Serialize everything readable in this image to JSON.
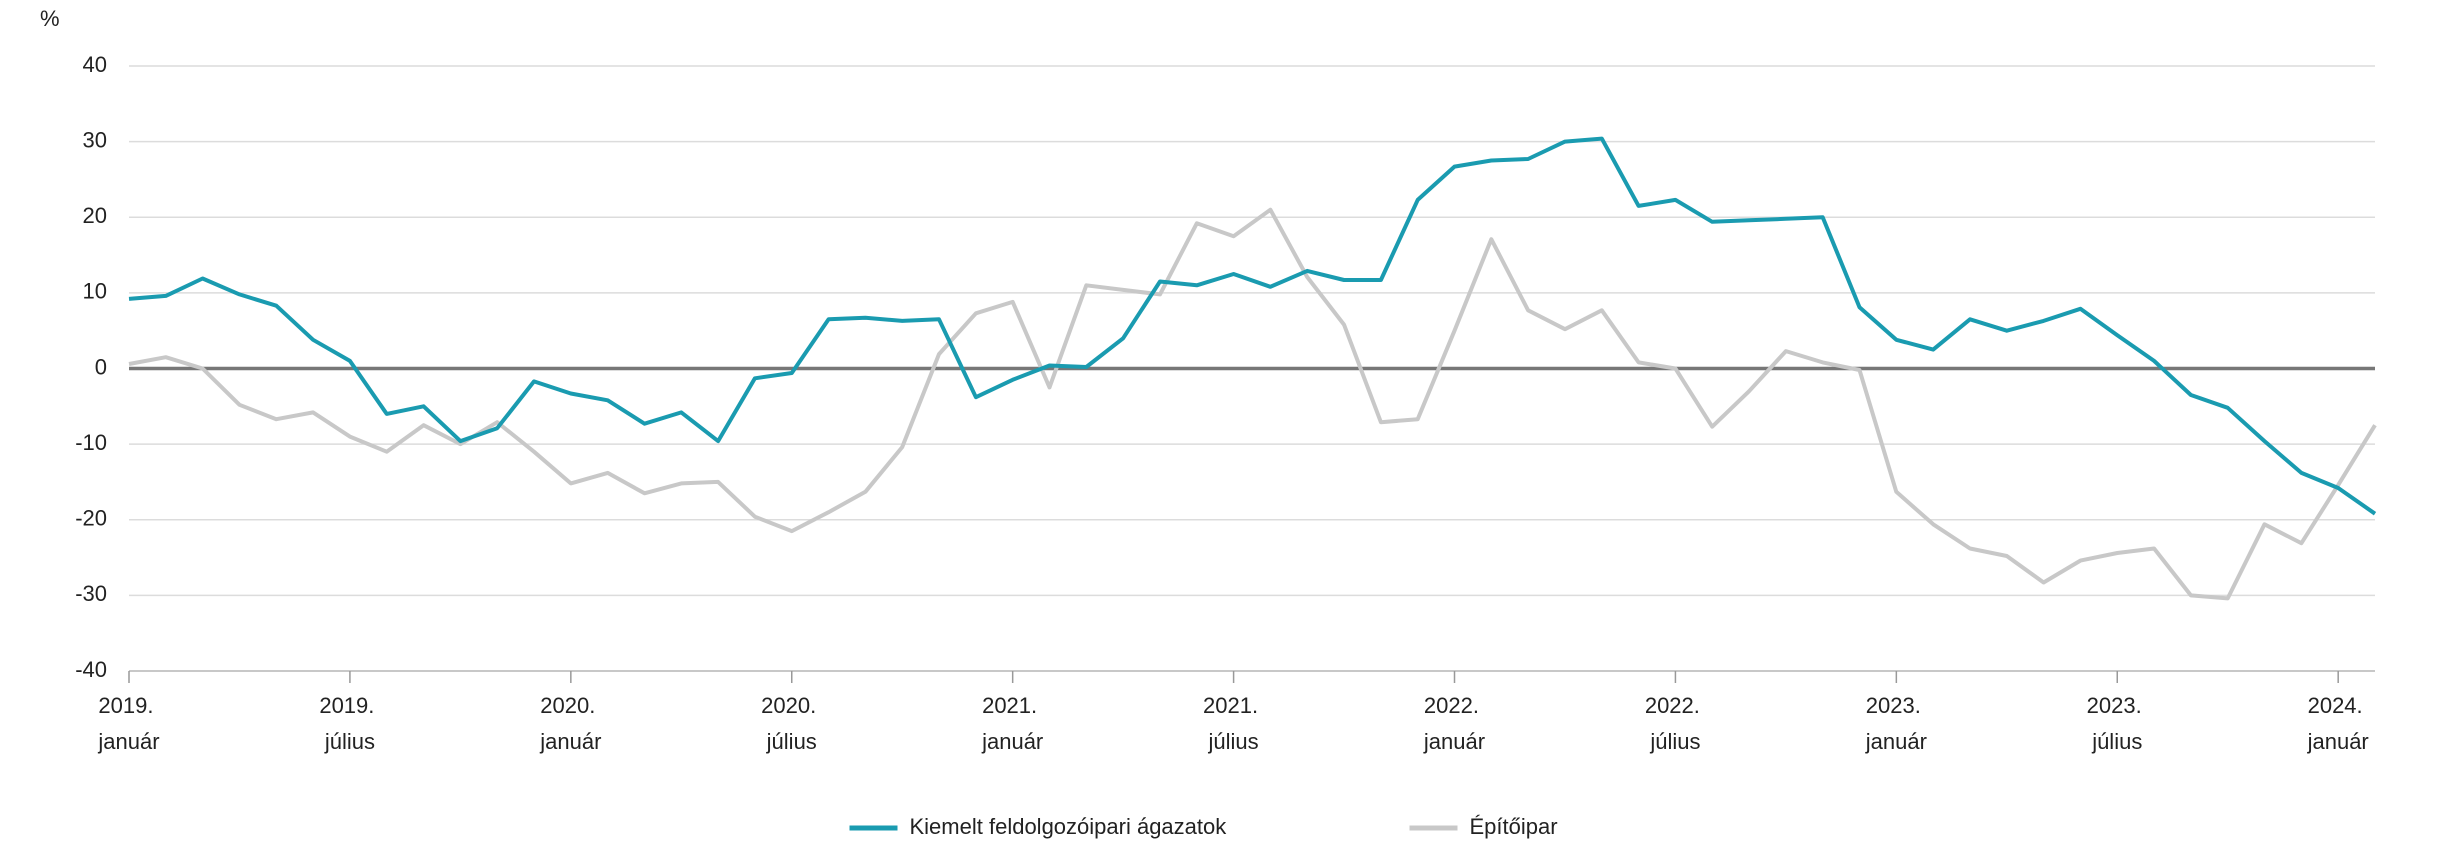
{
  "chart_data": {
    "type": "line",
    "y_label": "%",
    "categories": [
      "2019. január",
      null,
      null,
      null,
      null,
      null,
      "2019. július",
      null,
      null,
      null,
      null,
      null,
      "2020. január",
      null,
      null,
      null,
      null,
      null,
      "2020. július",
      null,
      null,
      null,
      null,
      null,
      "2021. január",
      null,
      null,
      null,
      null,
      null,
      "2021. július",
      null,
      null,
      null,
      null,
      null,
      "2022. január",
      null,
      null,
      null,
      null,
      null,
      "2022. július",
      null,
      null,
      null,
      null,
      null,
      "2023. január",
      null,
      null,
      null,
      null,
      null,
      "2023. július",
      null,
      null,
      null,
      null,
      null,
      "2024. január",
      null
    ],
    "series": [
      {
        "name": "Kiemelt feldolgozóipari ágazatok",
        "color": "#1a9bb0",
        "values": [
          9.2,
          9.6,
          11.9,
          9.8,
          8.3,
          3.8,
          1.0,
          -6.0,
          -5.0,
          -9.6,
          -7.9,
          -1.7,
          -3.3,
          -4.2,
          -7.3,
          -5.8,
          -9.6,
          -1.3,
          -0.6,
          6.5,
          6.7,
          6.3,
          6.5,
          -3.8,
          -1.5,
          0.4,
          0.2,
          4.0,
          11.5,
          11.0,
          12.5,
          10.8,
          12.9,
          11.7,
          11.7,
          22.3,
          26.7,
          27.5,
          27.7,
          30.0,
          30.4,
          21.5,
          22.3,
          19.4,
          19.6,
          19.8,
          20.0,
          8.1,
          3.8,
          2.5,
          6.5,
          5.0,
          6.3,
          7.9,
          4.4,
          1.0,
          -3.5,
          -5.2,
          -9.6,
          -13.8,
          -15.8,
          -19.2
        ]
      },
      {
        "name": "Építőipar",
        "color": "#c8c8c8",
        "values": [
          0.6,
          1.5,
          0,
          -4.8,
          -6.7,
          -5.8,
          -9.0,
          -11.0,
          -7.5,
          -10.0,
          -7.1,
          -11.0,
          -15.2,
          -13.8,
          -16.5,
          -15.2,
          -15.0,
          -19.6,
          -21.5,
          -19.0,
          -16.3,
          -10.4,
          1.9,
          7.3,
          8.8,
          -2.5,
          11.0,
          10.4,
          9.8,
          19.2,
          17.5,
          21.0,
          12.1,
          5.8,
          -7.1,
          -6.7,
          5.0,
          17.1,
          7.7,
          5.2,
          7.7,
          0.8,
          0,
          -7.7,
          -3.0,
          2.3,
          0.8,
          -0.2,
          -16.3,
          -20.6,
          -23.8,
          -24.8,
          -28.3,
          -25.4,
          -24.4,
          -23.8,
          -30.0,
          -30.4,
          -20.6,
          -23.1,
          -15.4,
          -7.5
        ]
      }
    ],
    "ylim": [
      -40,
      40
    ],
    "yticks": [
      -40,
      -30,
      -20,
      -10,
      0,
      10,
      20,
      30,
      40
    ],
    "grid": true,
    "legend": "bottom"
  }
}
